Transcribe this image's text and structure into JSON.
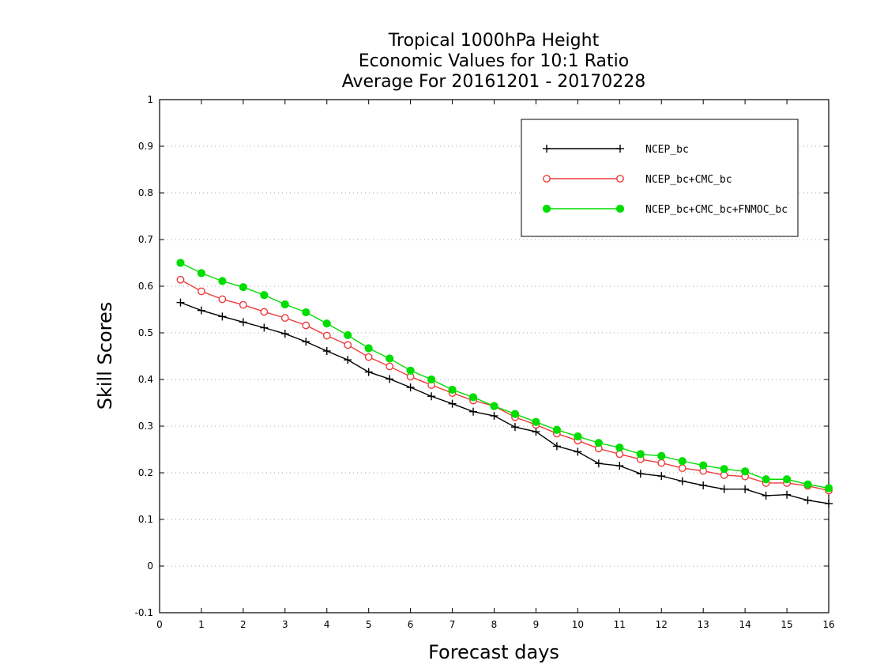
{
  "chart_data": {
    "type": "line",
    "title_lines": [
      "Tropical 1000hPa Height",
      "Economic Values for 10:1 Ratio",
      "Average For 20161201 - 20170228"
    ],
    "xlabel": "Forecast days",
    "ylabel": "Skill Scores",
    "xlim": [
      0,
      16
    ],
    "ylim": [
      -0.1,
      1.0
    ],
    "x_ticks": [
      0,
      1,
      2,
      3,
      4,
      5,
      6,
      7,
      8,
      9,
      10,
      11,
      12,
      13,
      14,
      15,
      16
    ],
    "x_tick_labels": [
      "0",
      "1",
      "2",
      "3",
      "4",
      "5",
      "6",
      "7",
      "8",
      "9",
      "10",
      "11",
      "12",
      "13",
      "14",
      "15",
      "16"
    ],
    "y_ticks": [
      -0.1,
      0,
      0.1,
      0.2,
      0.3,
      0.4,
      0.5,
      0.6,
      0.7,
      0.8,
      0.9,
      1.0
    ],
    "y_tick_labels": [
      "-0.1",
      "0",
      "0.1",
      "0.2",
      "0.3",
      "0.4",
      "0.5",
      "0.6",
      "0.7",
      "0.8",
      "0.9",
      "1"
    ],
    "grid": "horizontal dotted",
    "legend_position": "top-right",
    "x": [
      0.5,
      1,
      1.5,
      2,
      2.5,
      3,
      3.5,
      4,
      4.5,
      5,
      5.5,
      6,
      6.5,
      7,
      7.5,
      8,
      8.5,
      9,
      9.5,
      10,
      10.5,
      11,
      11.5,
      12,
      12.5,
      13,
      13.5,
      14,
      14.5,
      15,
      15.5,
      16
    ],
    "series": [
      {
        "name": "NCEP_bc",
        "color": "#000000",
        "marker": "plus",
        "values": [
          0.565,
          0.548,
          0.535,
          0.523,
          0.511,
          0.498,
          0.481,
          0.461,
          0.442,
          0.416,
          0.401,
          0.383,
          0.364,
          0.348,
          0.331,
          0.322,
          0.298,
          0.288,
          0.257,
          0.245,
          0.22,
          0.215,
          0.198,
          0.193,
          0.182,
          0.173,
          0.165,
          0.165,
          0.151,
          0.153,
          0.141,
          0.134
        ]
      },
      {
        "name": "NCEP_bc+CMC_bc",
        "color": "#ee3b3b",
        "marker": "open-circle",
        "values": [
          0.614,
          0.589,
          0.572,
          0.56,
          0.545,
          0.532,
          0.516,
          0.494,
          0.474,
          0.448,
          0.428,
          0.406,
          0.388,
          0.371,
          0.355,
          0.343,
          0.319,
          0.303,
          0.284,
          0.269,
          0.252,
          0.24,
          0.229,
          0.221,
          0.21,
          0.204,
          0.195,
          0.192,
          0.178,
          0.178,
          0.172,
          0.162
        ]
      },
      {
        "name": "NCEP_bc+CMC_bc+FNMOC_bc",
        "color": "#00dd00",
        "marker": "filled-circle",
        "values": [
          0.65,
          0.628,
          0.611,
          0.598,
          0.581,
          0.561,
          0.544,
          0.52,
          0.495,
          0.467,
          0.445,
          0.419,
          0.4,
          0.378,
          0.362,
          0.343,
          0.326,
          0.309,
          0.292,
          0.278,
          0.264,
          0.254,
          0.24,
          0.236,
          0.225,
          0.216,
          0.208,
          0.203,
          0.186,
          0.186,
          0.175,
          0.167
        ]
      }
    ]
  }
}
